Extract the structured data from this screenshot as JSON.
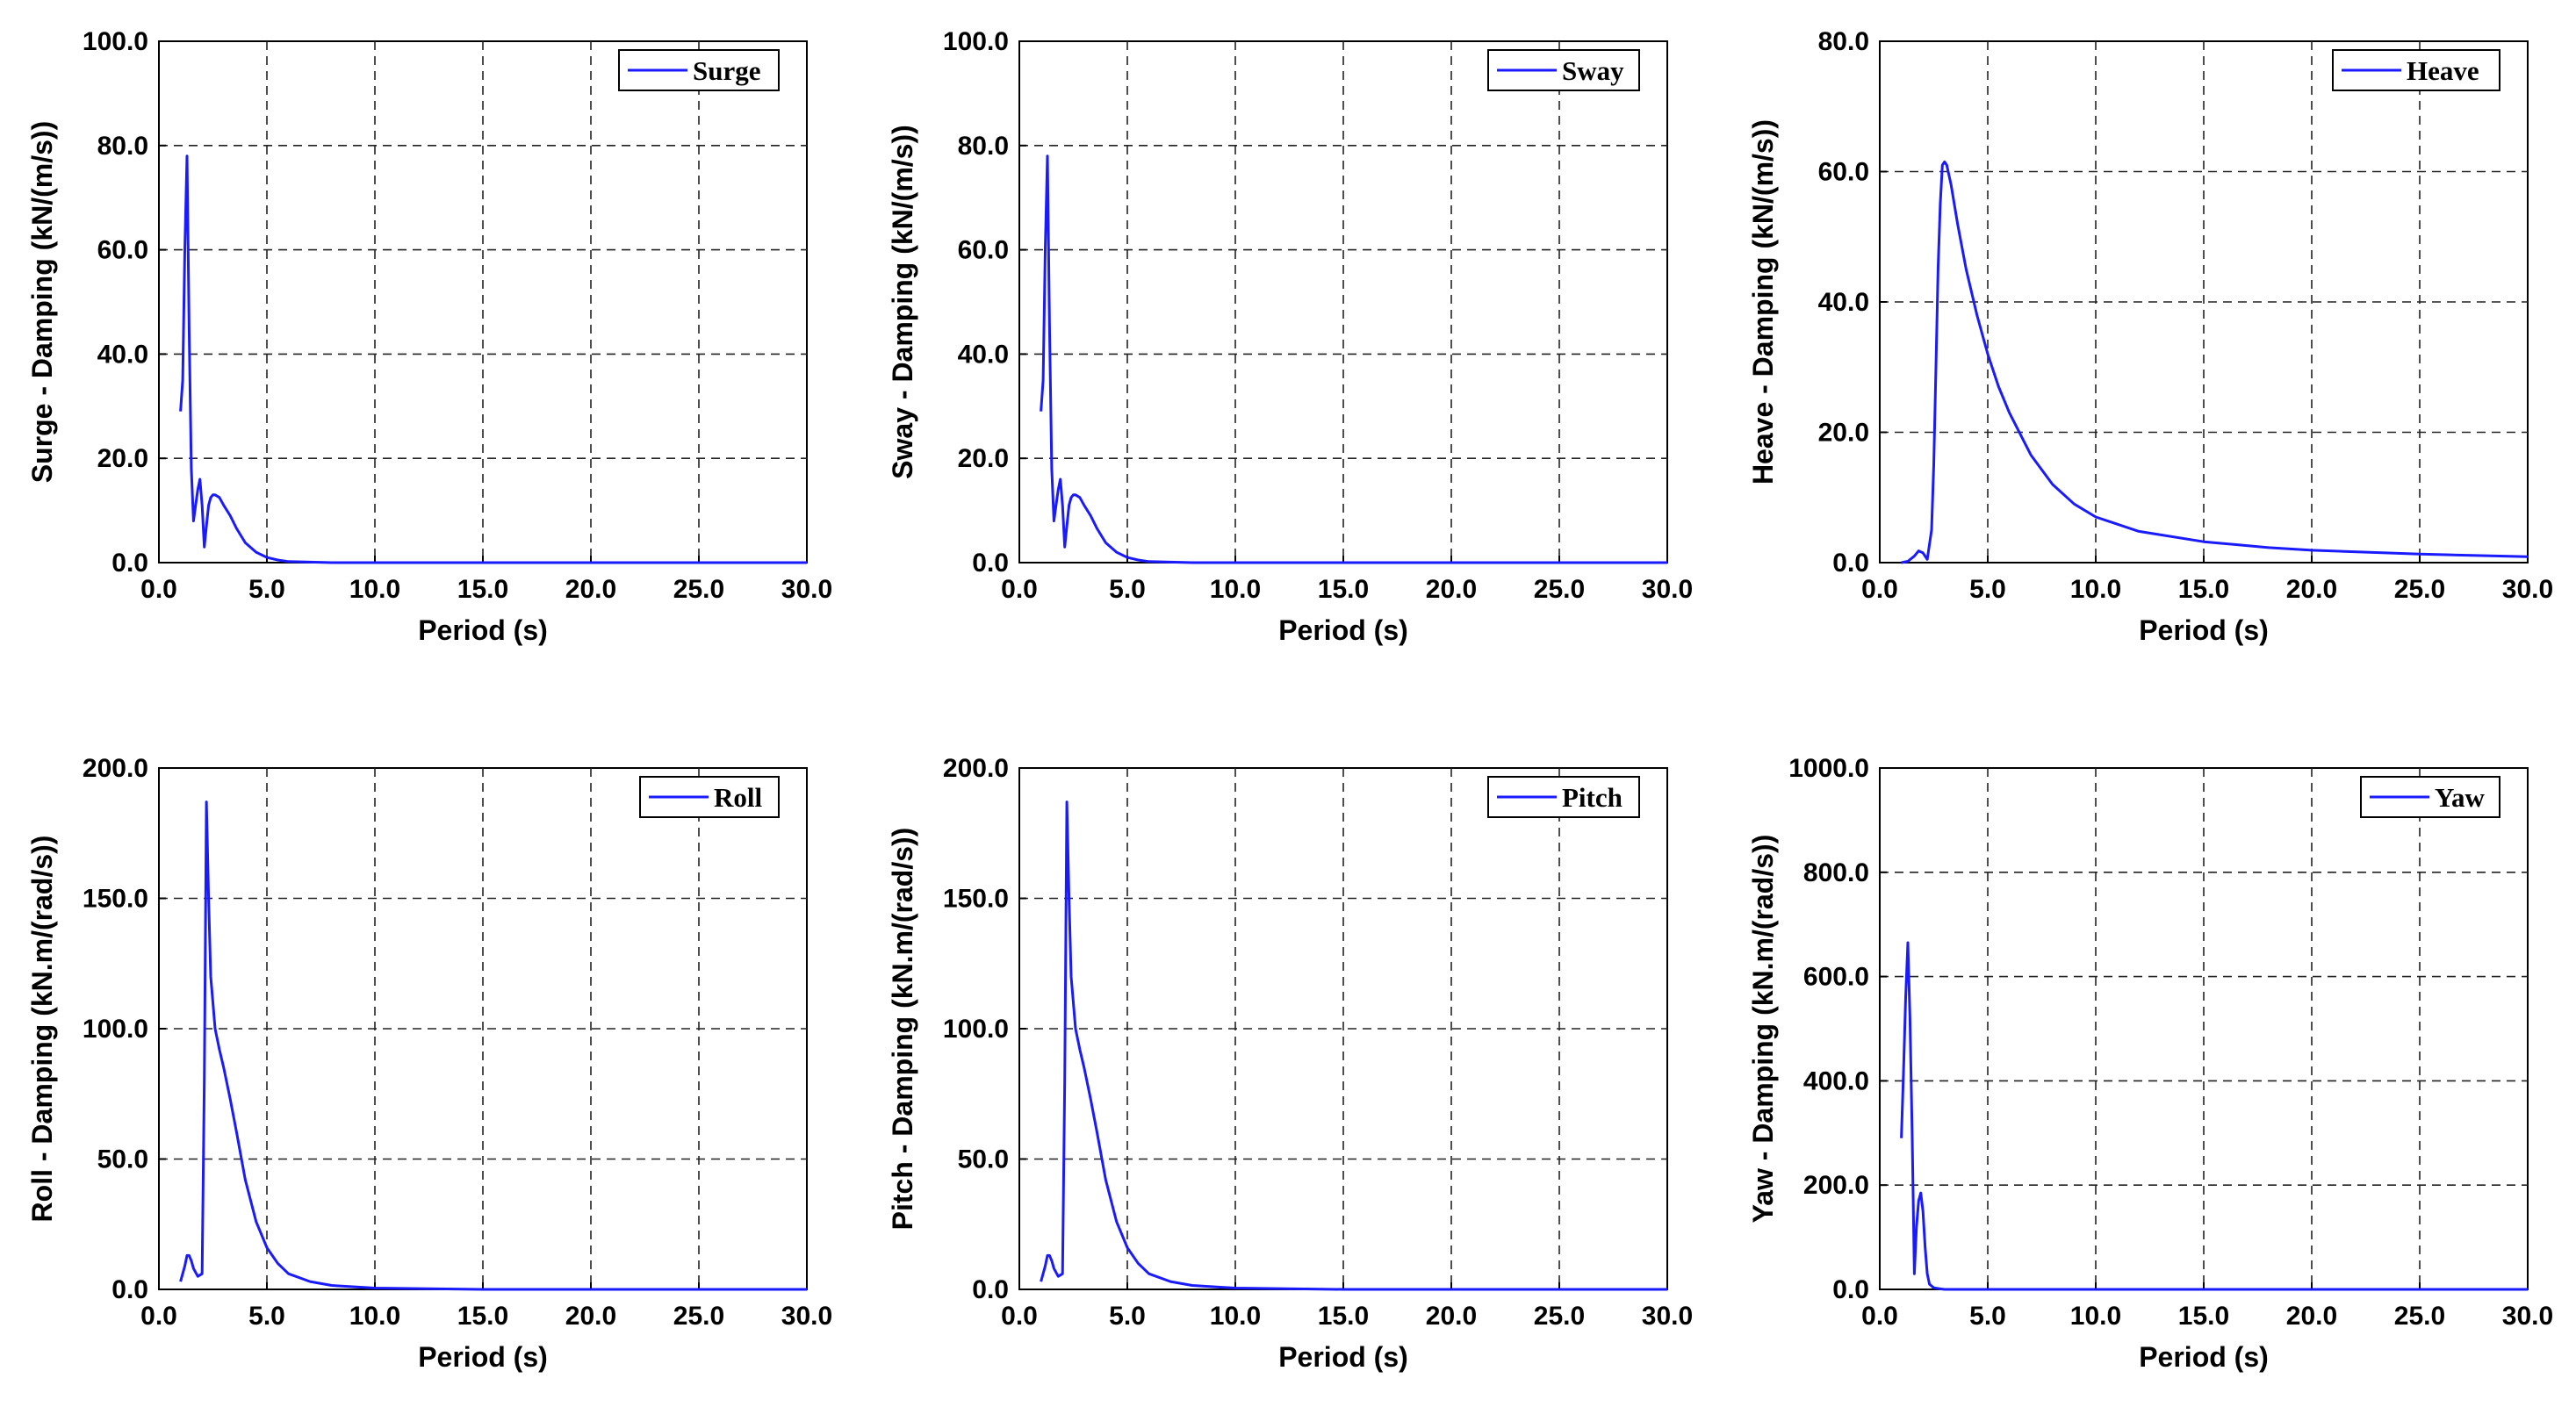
{
  "chart_data": [
    {
      "type": "line",
      "title": "",
      "xlabel": "Period (s)",
      "ylabel": "Surge - Damping (kN/(m/s))",
      "xlim": [
        0,
        30
      ],
      "ylim": [
        0,
        100
      ],
      "xticks": [
        "0.0",
        "5.0",
        "10.0",
        "15.0",
        "20.0",
        "25.0",
        "30.0"
      ],
      "yticks": [
        "0.0",
        "20.0",
        "40.0",
        "60.0",
        "80.0",
        "100.0"
      ],
      "grid": true,
      "legend_position": "top-right",
      "color": "#1a1aff",
      "series": [
        {
          "name": "Surge",
          "x": [
            1.0,
            1.1,
            1.2,
            1.3,
            1.4,
            1.5,
            1.6,
            1.7,
            1.8,
            1.9,
            2.0,
            2.1,
            2.2,
            2.3,
            2.4,
            2.5,
            2.6,
            2.8,
            3.0,
            3.3,
            3.6,
            4.0,
            4.5,
            5.0,
            5.5,
            6.0,
            7.0,
            8.0,
            10.0,
            15.0,
            20.0,
            30.0
          ],
          "y": [
            29,
            35,
            60,
            78,
            45,
            18,
            8,
            11,
            14,
            16,
            11,
            3,
            7,
            11,
            12.5,
            13,
            13,
            12.5,
            11,
            9,
            6.5,
            3.8,
            2,
            1,
            0.5,
            0.2,
            0.1,
            0,
            0,
            0,
            0,
            0
          ]
        }
      ]
    },
    {
      "type": "line",
      "title": "",
      "xlabel": "Period (s)",
      "ylabel": "Sway - Damping (kN/(m/s))",
      "xlim": [
        0,
        30
      ],
      "ylim": [
        0,
        100
      ],
      "xticks": [
        "0.0",
        "5.0",
        "10.0",
        "15.0",
        "20.0",
        "25.0",
        "30.0"
      ],
      "yticks": [
        "0.0",
        "20.0",
        "40.0",
        "60.0",
        "80.0",
        "100.0"
      ],
      "grid": true,
      "legend_position": "top-right",
      "color": "#1a1aff",
      "series": [
        {
          "name": "Sway",
          "x": [
            1.0,
            1.1,
            1.2,
            1.3,
            1.4,
            1.5,
            1.6,
            1.7,
            1.8,
            1.9,
            2.0,
            2.1,
            2.2,
            2.3,
            2.4,
            2.5,
            2.6,
            2.8,
            3.0,
            3.3,
            3.6,
            4.0,
            4.5,
            5.0,
            5.5,
            6.0,
            7.0,
            8.0,
            10.0,
            15.0,
            20.0,
            30.0
          ],
          "y": [
            29,
            35,
            60,
            78,
            45,
            18,
            8,
            11,
            14,
            16,
            11,
            3,
            7,
            11,
            12.5,
            13,
            13,
            12.5,
            11,
            9,
            6.5,
            3.8,
            2,
            1,
            0.5,
            0.2,
            0.1,
            0,
            0,
            0,
            0,
            0
          ]
        }
      ]
    },
    {
      "type": "line",
      "title": "",
      "xlabel": "Period (s)",
      "ylabel": "Heave - Damping (kN/(m/s))",
      "xlim": [
        0,
        30
      ],
      "ylim": [
        0,
        80
      ],
      "xticks": [
        "0.0",
        "5.0",
        "10.0",
        "15.0",
        "20.0",
        "25.0",
        "30.0"
      ],
      "yticks": [
        "0.0",
        "20.0",
        "40.0",
        "60.0",
        "80.0"
      ],
      "grid": true,
      "legend_position": "top-right",
      "color": "#1a1aff",
      "series": [
        {
          "name": "Heave",
          "x": [
            1.0,
            1.3,
            1.6,
            1.8,
            2.0,
            2.2,
            2.4,
            2.5,
            2.6,
            2.7,
            2.8,
            2.9,
            3.0,
            3.1,
            3.3,
            3.6,
            4.0,
            4.5,
            5.0,
            5.5,
            6.0,
            7.0,
            8.0,
            9.0,
            10.0,
            12.0,
            15.0,
            18.0,
            20.0,
            25.0,
            30.0
          ],
          "y": [
            0,
            0.2,
            1,
            1.8,
            1.5,
            0.5,
            5,
            15,
            30,
            45,
            55,
            61,
            61.5,
            61,
            58,
            52,
            45,
            38,
            32,
            27,
            23,
            16.5,
            12,
            9,
            7,
            4.8,
            3.2,
            2.3,
            1.9,
            1.3,
            0.9
          ]
        }
      ]
    },
    {
      "type": "line",
      "title": "",
      "xlabel": "Period (s)",
      "ylabel": "Roll - Damping (kN.m/(rad/s))",
      "xlim": [
        0,
        30
      ],
      "ylim": [
        0,
        200
      ],
      "xticks": [
        "0.0",
        "5.0",
        "10.0",
        "15.0",
        "20.0",
        "25.0",
        "30.0"
      ],
      "yticks": [
        "0.0",
        "50.0",
        "100.0",
        "150.0",
        "200.0"
      ],
      "grid": true,
      "legend_position": "top-right",
      "color": "#1a1aff",
      "series": [
        {
          "name": "Roll",
          "x": [
            1.0,
            1.2,
            1.3,
            1.4,
            1.5,
            1.6,
            1.8,
            2.0,
            2.1,
            2.2,
            2.3,
            2.4,
            2.5,
            2.6,
            2.8,
            3.0,
            3.3,
            3.6,
            4.0,
            4.5,
            5.0,
            5.5,
            6.0,
            7.0,
            8.0,
            10.0,
            15.0,
            20.0,
            30.0
          ],
          "y": [
            3,
            9,
            13,
            13,
            11,
            8,
            5,
            6,
            80,
            187,
            150,
            120,
            110,
            100,
            92,
            85,
            73,
            60,
            42,
            26,
            16,
            10,
            6,
            3,
            1.5,
            0.5,
            0,
            0,
            0
          ]
        }
      ]
    },
    {
      "type": "line",
      "title": "",
      "xlabel": "Period (s)",
      "ylabel": "Pitch - Damping (kN.m/(rad/s))",
      "xlim": [
        0,
        30
      ],
      "ylim": [
        0,
        200
      ],
      "xticks": [
        "0.0",
        "5.0",
        "10.0",
        "15.0",
        "20.0",
        "25.0",
        "30.0"
      ],
      "yticks": [
        "0.0",
        "50.0",
        "100.0",
        "150.0",
        "200.0"
      ],
      "grid": true,
      "legend_position": "top-right",
      "color": "#1a1aff",
      "series": [
        {
          "name": "Pitch",
          "x": [
            1.0,
            1.2,
            1.3,
            1.4,
            1.5,
            1.6,
            1.8,
            2.0,
            2.1,
            2.2,
            2.3,
            2.4,
            2.5,
            2.6,
            2.8,
            3.0,
            3.3,
            3.6,
            4.0,
            4.5,
            5.0,
            5.5,
            6.0,
            7.0,
            8.0,
            10.0,
            15.0,
            20.0,
            30.0
          ],
          "y": [
            3,
            9,
            13,
            13,
            11,
            8,
            5,
            6,
            80,
            187,
            150,
            120,
            110,
            100,
            92,
            85,
            73,
            60,
            42,
            26,
            16,
            10,
            6,
            3,
            1.5,
            0.5,
            0,
            0,
            0
          ]
        }
      ]
    },
    {
      "type": "line",
      "title": "",
      "xlabel": "Period (s)",
      "ylabel": "Yaw - Damping (kN.m/(rad/s))",
      "xlim": [
        0,
        30
      ],
      "ylim": [
        0,
        1000
      ],
      "xticks": [
        "0.0",
        "5.0",
        "10.0",
        "15.0",
        "20.0",
        "25.0",
        "30.0"
      ],
      "yticks": [
        "0.0",
        "200.0",
        "400.0",
        "600.0",
        "800.0",
        "1000.0"
      ],
      "grid": true,
      "legend_position": "top-right",
      "color": "#1a1aff",
      "series": [
        {
          "name": "Yaw",
          "x": [
            1.0,
            1.1,
            1.2,
            1.3,
            1.4,
            1.5,
            1.6,
            1.7,
            1.8,
            1.9,
            2.0,
            2.1,
            2.2,
            2.3,
            2.5,
            2.8,
            3.0,
            3.5,
            4.0,
            5.0,
            10.0,
            20.0,
            30.0
          ],
          "y": [
            290,
            420,
            560,
            665,
            520,
            300,
            30,
            120,
            170,
            185,
            150,
            80,
            30,
            10,
            3,
            1,
            0,
            0,
            0,
            0,
            0,
            0,
            0
          ]
        }
      ]
    }
  ]
}
